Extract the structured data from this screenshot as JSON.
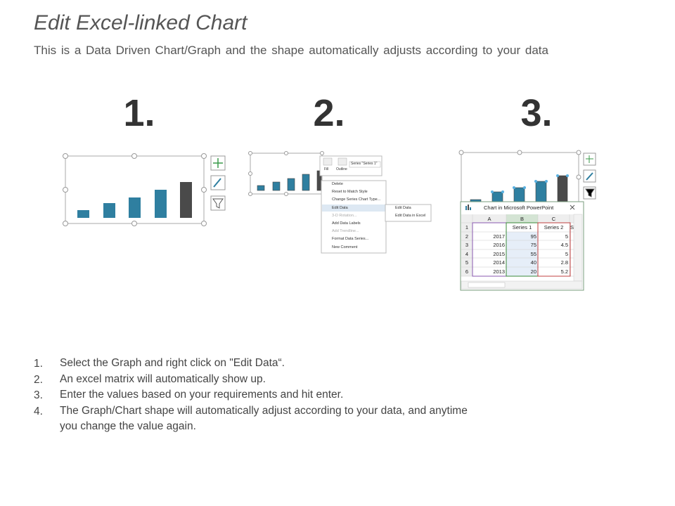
{
  "header": {
    "title": "Edit Excel-linked Chart",
    "subtitle": "This is a Data Driven Chart/Graph and the shape automatically adjusts according to your data"
  },
  "steps": [
    "1.",
    "2.",
    "3."
  ],
  "menu": {
    "toolbar": [
      "Fill",
      "Outline",
      "Series \"Series 1\""
    ],
    "items": [
      "Delete",
      "Reset to Match Style",
      "Change Series Chart Type...",
      "Edit Data",
      "3-D Rotation...",
      "Add Data Labels",
      "Add Trendline...",
      "Format Data Series...",
      "New Comment"
    ],
    "submenu": [
      "Edit Data",
      "Edit Data in Excel"
    ]
  },
  "excel": {
    "title": "Chart in Microsoft PowerPoint",
    "columns": [
      "A",
      "B",
      "C"
    ],
    "rows": [
      {
        "num": "1",
        "b": "Series 1",
        "c": "Series 2",
        "d": "S"
      },
      {
        "num": "2",
        "a": 2017,
        "b": 95,
        "c": 5
      },
      {
        "num": "3",
        "a": 2016,
        "b": 75,
        "c": 4.5
      },
      {
        "num": "4",
        "a": 2015,
        "b": 55,
        "c": 5
      },
      {
        "num": "5",
        "a": 2014,
        "b": 40,
        "c": 2.8
      },
      {
        "num": "6",
        "a": 2013,
        "b": 20,
        "c": 5.2
      }
    ]
  },
  "list": [
    {
      "marker": "1.",
      "text": "Select the Graph and right click on \"Edit Data“."
    },
    {
      "marker": "2.",
      "text": "An excel matrix will automatically show up."
    },
    {
      "marker": "3.",
      "text": "Enter the values based on your requirements and hit enter."
    },
    {
      "marker": "4.",
      "text": "The Graph/Chart shape will automatically adjust according to your data, and anytime you change the value again."
    }
  ]
}
